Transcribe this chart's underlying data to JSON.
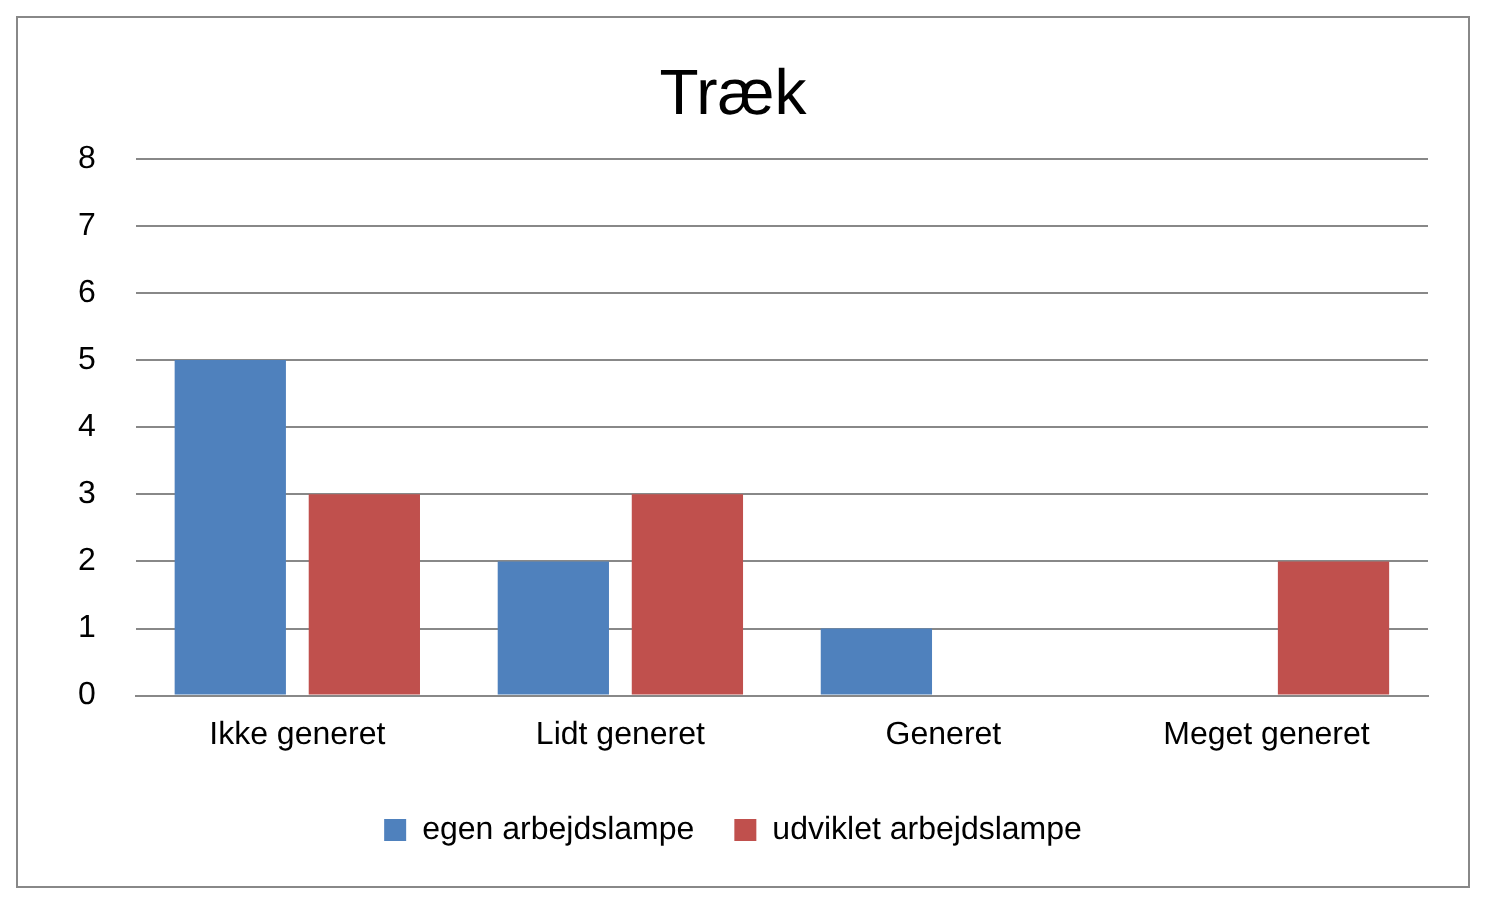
{
  "chart_data": {
    "type": "bar",
    "title": "Træk",
    "categories": [
      "Ikke generet",
      "Lidt generet",
      "Generet",
      "Meget generet"
    ],
    "series": [
      {
        "name": "egen arbejdslampe",
        "color": "#4f81bd",
        "values": [
          5,
          2,
          1,
          0
        ]
      },
      {
        "name": "udviklet arbejdslampe",
        "color": "#c0504d",
        "values": [
          3,
          3,
          0,
          2
        ]
      }
    ],
    "ylim": [
      0,
      8
    ],
    "yticks": [
      0,
      1,
      2,
      3,
      4,
      5,
      6,
      7,
      8
    ],
    "grid": "y",
    "legend": "bottom"
  }
}
